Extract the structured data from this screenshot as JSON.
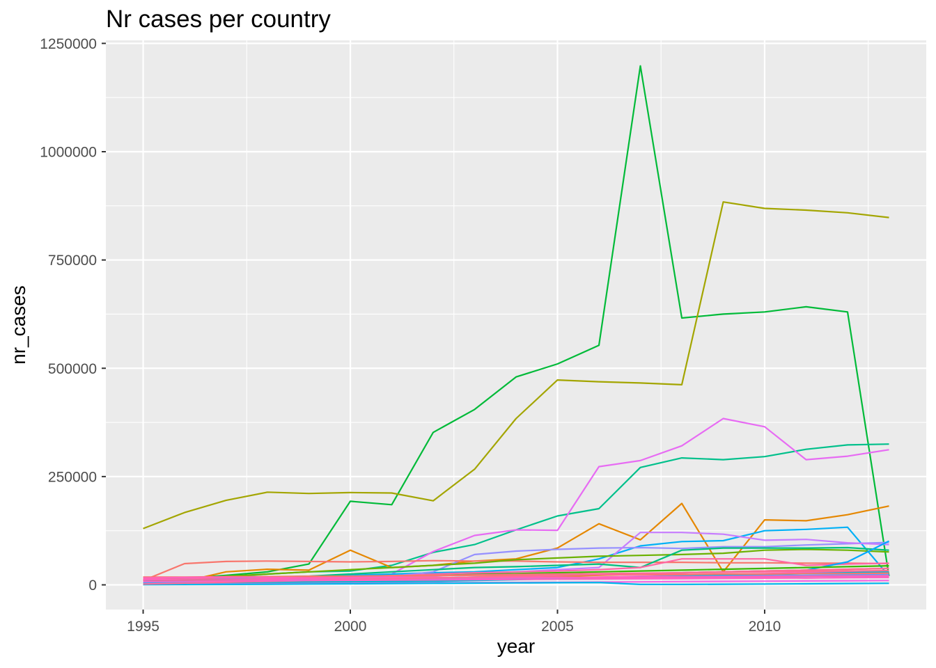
{
  "chart_data": {
    "type": "line",
    "title": "Nr cases per country",
    "xlabel": "year",
    "ylabel": "nr_cases",
    "xlim": [
      1994.1,
      2013.9
    ],
    "ylim": [
      -57000,
      1257000
    ],
    "xticks": [
      1995,
      2000,
      2005,
      2010
    ],
    "yticks": [
      0,
      250000,
      500000,
      750000,
      1000000,
      1250000
    ],
    "xtick_labels": [
      "1995",
      "2000",
      "2005",
      "2010"
    ],
    "ytick_labels": [
      "0",
      "250000",
      "500000",
      "750000",
      "1000000",
      "1250000"
    ],
    "grid": true,
    "legend": "none",
    "panel_background": "#ebebeb",
    "gridline_color": "#ffffff",
    "x": [
      1995,
      1996,
      1997,
      1998,
      1999,
      2000,
      2001,
      2002,
      2003,
      2004,
      2005,
      2006,
      2007,
      2008,
      2009,
      2010,
      2011,
      2012,
      2013
    ],
    "series": [
      {
        "color": "#00BA38",
        "values": [
          10000,
          15000,
          22000,
          30000,
          48000,
          193000,
          185000,
          352000,
          405000,
          480000,
          510000,
          553000,
          1198000,
          616000,
          625000,
          630000,
          642000,
          630000,
          20000
        ]
      },
      {
        "color": "#A3A500",
        "values": [
          130000,
          167000,
          195000,
          214000,
          211000,
          213000,
          212000,
          194000,
          267000,
          384000,
          473000,
          469000,
          466000,
          462000,
          884000,
          869000,
          865000,
          859000,
          848000
        ]
      },
      {
        "color": "#00C08B",
        "values": [
          8000,
          12000,
          18000,
          25000,
          30000,
          32000,
          45000,
          75000,
          93000,
          127000,
          159000,
          176000,
          271000,
          293000,
          289000,
          296000,
          313000,
          323000,
          325000
        ]
      },
      {
        "color": "#E76BF3",
        "values": [
          5000,
          8000,
          10000,
          12000,
          15000,
          18000,
          25000,
          77000,
          114000,
          127000,
          126000,
          273000,
          287000,
          321000,
          384000,
          365000,
          289000,
          297000,
          312000
        ]
      },
      {
        "color": "#E58700",
        "values": [
          5000,
          8000,
          30000,
          36000,
          34000,
          80000,
          40000,
          45000,
          55000,
          60000,
          85000,
          141000,
          104000,
          188000,
          30000,
          150000,
          148000,
          162000,
          182000
        ]
      },
      {
        "color": "#00B0F6",
        "values": [
          10000,
          12000,
          15000,
          18000,
          20000,
          22000,
          25000,
          28000,
          30000,
          35000,
          40000,
          60000,
          90000,
          100000,
          102000,
          125000,
          128000,
          133000,
          20000
        ]
      },
      {
        "color": "#9590FF",
        "values": [
          3000,
          5000,
          8000,
          10000,
          12000,
          15000,
          20000,
          30000,
          70000,
          78000,
          82000,
          85000,
          86000,
          84000,
          88000,
          88000,
          92000,
          95000,
          98000
        ]
      },
      {
        "color": "#C77CFF",
        "values": [
          2000,
          3000,
          5000,
          8000,
          10000,
          12000,
          15000,
          20000,
          25000,
          30000,
          35000,
          40000,
          121000,
          121000,
          117000,
          103000,
          105000,
          97000,
          93000
        ]
      },
      {
        "color": "#F8766D",
        "values": [
          10000,
          49000,
          54000,
          55000,
          54000,
          53000,
          54000,
          56000,
          55000,
          55000,
          53000,
          52000,
          52000,
          52000,
          51000,
          51000,
          50000,
          50000,
          49000
        ]
      },
      {
        "color": "#6BB100",
        "values": [
          5000,
          10000,
          20000,
          25000,
          30000,
          35000,
          40000,
          45000,
          50000,
          58000,
          62000,
          66000,
          68000,
          70000,
          73000,
          80000,
          82000,
          80000,
          76000
        ]
      },
      {
        "color": "#00BF7D",
        "values": [
          3000,
          5000,
          10000,
          15000,
          20000,
          25000,
          30000,
          35000,
          40000,
          42000,
          45000,
          48000,
          40000,
          80000,
          85000,
          85000,
          85000,
          86000,
          80000
        ]
      },
      {
        "color": "#FF67A4",
        "values": [
          5000,
          8000,
          10000,
          12000,
          15000,
          18000,
          20000,
          25000,
          28000,
          30000,
          32000,
          35000,
          40000,
          60000,
          60000,
          60000,
          45000,
          48000,
          50000
        ]
      },
      {
        "color": "#00A9FF",
        "values": [
          3000,
          5000,
          6000,
          8000,
          10000,
          12000,
          14000,
          16000,
          18000,
          20000,
          22000,
          24000,
          26000,
          28000,
          30000,
          32000,
          34000,
          53000,
          101000
        ]
      },
      {
        "color": "#D89000",
        "values": [
          2000,
          3000,
          4000,
          5000,
          6000,
          8000,
          10000,
          12000,
          15000,
          18000,
          20000,
          22000,
          25000,
          28000,
          30000,
          32000,
          34000,
          36000,
          38000
        ]
      },
      {
        "color": "#FD61D1",
        "values": [
          2000,
          3000,
          4000,
          5000,
          6000,
          7000,
          8000,
          10000,
          12000,
          14000,
          16000,
          18000,
          20000,
          22000,
          24000,
          26000,
          28000,
          30000,
          32000
        ]
      },
      {
        "color": "#00BCD8",
        "values": [
          1000,
          2000,
          3000,
          4000,
          5000,
          6000,
          7000,
          8000,
          10000,
          12000,
          14000,
          16000,
          18000,
          20000,
          22000,
          24000,
          26000,
          28000,
          30000
        ]
      },
      {
        "color": "#39B600",
        "values": [
          8000,
          10000,
          12000,
          14000,
          16000,
          18000,
          20000,
          22000,
          24000,
          26000,
          28000,
          30000,
          32000,
          34000,
          36000,
          38000,
          40000,
          42000,
          44000
        ]
      },
      {
        "color": "#FF6C91",
        "values": [
          15000,
          16000,
          17000,
          18000,
          19000,
          20000,
          21000,
          22000,
          23000,
          24000,
          25000,
          26000,
          27000,
          28000,
          29000,
          30000,
          31000,
          32000,
          33000
        ]
      },
      {
        "color": "#00BFC4",
        "values": [
          4000,
          5000,
          6000,
          7000,
          8000,
          9000,
          10000,
          11000,
          12000,
          13000,
          14000,
          15000,
          16000,
          17000,
          18000,
          19000,
          20000,
          21000,
          22000
        ]
      },
      {
        "color": "#F564E3",
        "values": [
          1000,
          1500,
          2000,
          2500,
          3000,
          3500,
          4000,
          4500,
          5000,
          5500,
          6000,
          6500,
          7000,
          7500,
          8000,
          8500,
          9000,
          9500,
          10000
        ]
      },
      {
        "color": "#619CFF",
        "values": [
          6000,
          7000,
          8000,
          9000,
          10000,
          11000,
          12000,
          13000,
          14000,
          15000,
          16000,
          17000,
          18000,
          19000,
          20000,
          21000,
          22000,
          23000,
          24000
        ]
      },
      {
        "color": "#00B6EB",
        "values": [
          500,
          800,
          1000,
          1500,
          2000,
          2500,
          3000,
          3500,
          4000,
          4500,
          5000,
          5500,
          1000,
          1000,
          1500,
          2000,
          2500,
          3000,
          3500
        ]
      },
      {
        "color": "#F8766D",
        "values": [
          18000,
          18000,
          19000,
          19000,
          20000,
          20000,
          21000,
          21000,
          22000,
          22000,
          23000,
          23000,
          24000,
          24000,
          25000,
          25000,
          26000,
          26000,
          27000
        ]
      },
      {
        "color": "#FF63B6",
        "values": [
          12000,
          12500,
          13000,
          13500,
          14000,
          14500,
          15000,
          15500,
          16000,
          16500,
          17000,
          17500,
          18000,
          18500,
          19000,
          19500,
          20000,
          20500,
          21000
        ]
      },
      {
        "color": "#FF62BC",
        "values": [
          16000,
          17000,
          18000,
          17000,
          16000,
          17000,
          18000,
          17000,
          16000,
          17000,
          18000,
          17000,
          16000,
          17000,
          18000,
          17000,
          16000,
          17000,
          18000
        ]
      },
      {
        "color": "#FF6A98",
        "values": [
          2000,
          4000,
          6000,
          8000,
          10000,
          12000,
          14000,
          16000,
          18000,
          20000,
          22000,
          24000,
          26000,
          28000,
          30000,
          32000,
          34000,
          36000,
          38000
        ]
      },
      {
        "color": "#FF61C3",
        "values": [
          8000,
          8500,
          9000,
          9500,
          10000,
          10500,
          11000,
          11500,
          12000,
          12500,
          13000,
          13500,
          14000,
          14500,
          15000,
          15500,
          16000,
          16500,
          17000
        ]
      }
    ]
  }
}
